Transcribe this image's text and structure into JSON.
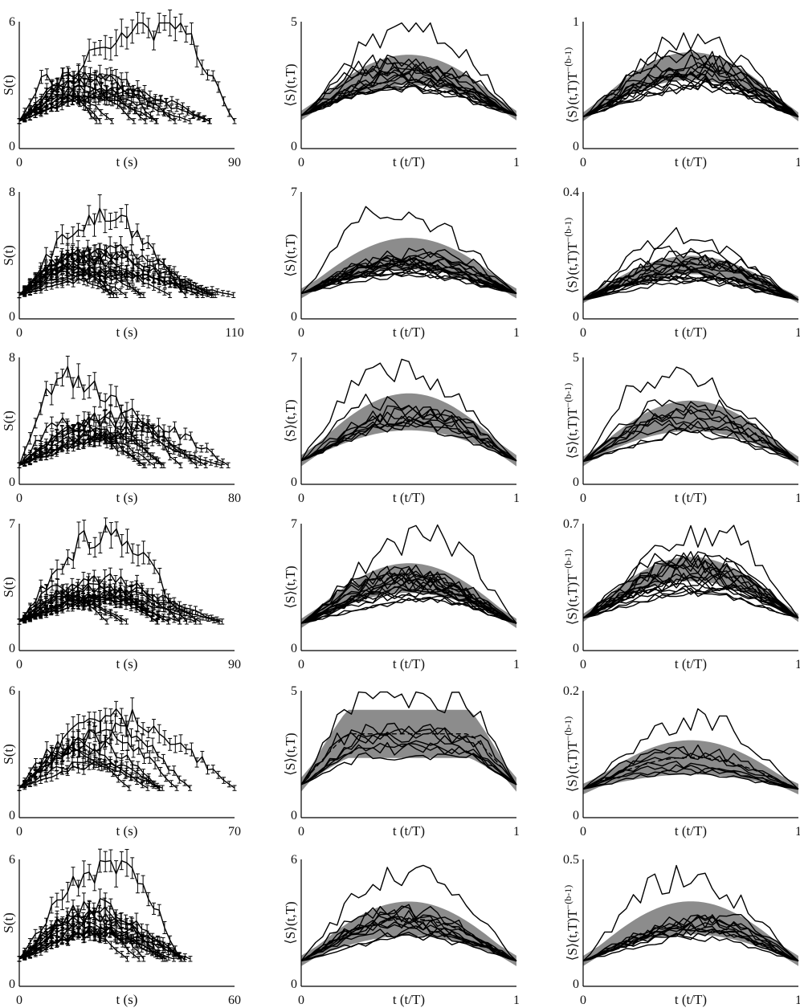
{
  "colors": {
    "line": "#000000",
    "band": "#8c8c8c",
    "axis": "#000000",
    "background": "#ffffff"
  },
  "chart_data": [
    {
      "panel": "r1c1",
      "type": "line",
      "xlabel": "t (s)",
      "ylabel": "S(t)",
      "xlim": [
        0,
        90
      ],
      "ylim": [
        0,
        6
      ],
      "x_ticks": [
        "0",
        "90"
      ],
      "y_ticks": [
        "0",
        "6"
      ],
      "error_bars": true,
      "band": false,
      "n_curves": 12,
      "seed": 11,
      "peak": 3,
      "outlier": {
        "peak": 5.8,
        "end": 90,
        "center": 0.66
      },
      "dur_range": [
        0.35,
        0.9
      ],
      "base": 1.3
    },
    {
      "panel": "r1c2",
      "type": "line",
      "xlabel": "t (t/T)",
      "ylabel": "⟨S⟩(t,T)",
      "xlim": [
        0,
        1
      ],
      "ylim": [
        0,
        5
      ],
      "x_ticks": [
        "0",
        "1"
      ],
      "y_ticks": [
        "0",
        "5"
      ],
      "error_bars": false,
      "band": true,
      "band_mid": 3.1,
      "band_half": 0.55,
      "n_curves": 16,
      "seed": 12,
      "peak": 3.0,
      "outlier": {
        "peak": 4.9
      },
      "base": 1.3
    },
    {
      "panel": "r1c3",
      "type": "line",
      "xlabel": "t (t/T)",
      "ylabel": "⟨S⟩(t,T)T",
      "ylabel_sup": "−(b-1)",
      "xlim": [
        0,
        1
      ],
      "ylim": [
        0,
        1
      ],
      "x_ticks": [
        "0",
        "1"
      ],
      "y_ticks": [
        "0",
        "1"
      ],
      "error_bars": false,
      "band": true,
      "band_mid": 0.65,
      "band_half": 0.1,
      "n_curves": 16,
      "seed": 13,
      "peak": 0.62,
      "outlier": {
        "peak": 0.86
      },
      "base": 0.25
    },
    {
      "panel": "r2c1",
      "type": "line",
      "xlabel": "t (s)",
      "ylabel": "S(t)",
      "xlim": [
        0,
        110
      ],
      "ylim": [
        0,
        8
      ],
      "x_ticks": [
        "0",
        "110"
      ],
      "y_ticks": [
        "0",
        "8"
      ],
      "error_bars": true,
      "band": false,
      "n_curves": 14,
      "seed": 21,
      "peak": 3.6,
      "outlier": {
        "peak": 6.5,
        "end": 85,
        "center": 0.5
      },
      "dur_range": [
        0.3,
        1.0
      ],
      "base": 1.5
    },
    {
      "panel": "r2c2",
      "type": "line",
      "xlabel": "t (t/T)",
      "ylabel": "⟨S⟩(t,T)",
      "xlim": [
        0,
        1
      ],
      "ylim": [
        0,
        7
      ],
      "x_ticks": [
        "0",
        "1"
      ],
      "y_ticks": [
        "0",
        "7"
      ],
      "error_bars": false,
      "band": true,
      "band_mid": 3.6,
      "band_half": 0.8,
      "n_curves": 18,
      "seed": 22,
      "peak": 3.1,
      "outlier": {
        "peak": 6.0
      },
      "base": 1.4
    },
    {
      "panel": "r2c3",
      "type": "line",
      "xlabel": "t (t/T)",
      "ylabel": "⟨S⟩(t,T)T",
      "ylabel_sup": "−(b-1)",
      "xlim": [
        0,
        1
      ],
      "ylim": [
        0,
        0.4
      ],
      "x_ticks": [
        "0",
        "1"
      ],
      "y_ticks": [
        "0",
        "0.4"
      ],
      "error_bars": false,
      "band": true,
      "band_mid": 0.17,
      "band_half": 0.025,
      "n_curves": 18,
      "seed": 23,
      "peak": 0.17,
      "outlier": {
        "peak": 0.26
      },
      "base": 0.06
    },
    {
      "panel": "r3c1",
      "type": "line",
      "xlabel": "t (s)",
      "ylabel": "S(t)",
      "xlim": [
        0,
        80
      ],
      "ylim": [
        0,
        8
      ],
      "x_ticks": [
        "0",
        "80"
      ],
      "y_ticks": [
        "0",
        "8"
      ],
      "error_bars": true,
      "band": false,
      "n_curves": 10,
      "seed": 31,
      "peak": 3.9,
      "outlier": {
        "peak": 6.8,
        "end": 60,
        "center": 0.3
      },
      "dur_range": [
        0.55,
        1.0
      ],
      "base": 1.2
    },
    {
      "panel": "r3c2",
      "type": "line",
      "xlabel": "t (t/T)",
      "ylabel": "⟨S⟩(t,T)",
      "xlim": [
        0,
        1
      ],
      "ylim": [
        0,
        7
      ],
      "x_ticks": [
        "0",
        "1"
      ],
      "y_ticks": [
        "0",
        "7"
      ],
      "error_bars": false,
      "band": true,
      "band_mid": 4.0,
      "band_half": 0.95,
      "n_curves": 10,
      "seed": 32,
      "peak": 3.9,
      "outlier": {
        "peak": 6.6
      },
      "base": 1.3
    },
    {
      "panel": "r3c3",
      "type": "line",
      "xlabel": "t (t/T)",
      "ylabel": "⟨S⟩(t,T)T",
      "ylabel_sup": "−(b-1)",
      "xlim": [
        0,
        1
      ],
      "ylim": [
        0,
        5
      ],
      "x_ticks": [
        "0",
        "1"
      ],
      "y_ticks": [
        "0",
        "5"
      ],
      "error_bars": false,
      "band": true,
      "band_mid": 2.7,
      "band_half": 0.55,
      "n_curves": 10,
      "seed": 33,
      "peak": 2.6,
      "outlier": {
        "peak": 4.4
      },
      "base": 0.9
    },
    {
      "panel": "r4c1",
      "type": "line",
      "xlabel": "t (s)",
      "ylabel": "S(t)",
      "xlim": [
        0,
        90
      ],
      "ylim": [
        0,
        7
      ],
      "x_ticks": [
        "0",
        "90"
      ],
      "y_ticks": [
        "0",
        "7"
      ],
      "error_bars": true,
      "band": false,
      "n_curves": 14,
      "seed": 41,
      "peak": 3.4,
      "outlier": {
        "peak": 6.4,
        "end": 70,
        "center": 0.5
      },
      "dur_range": [
        0.4,
        1.0
      ],
      "base": 1.6
    },
    {
      "panel": "r4c2",
      "type": "line",
      "xlabel": "t (t/T)",
      "ylabel": "⟨S⟩(t,T)",
      "xlim": [
        0,
        1
      ],
      "ylim": [
        0,
        7
      ],
      "x_ticks": [
        "0",
        "1"
      ],
      "y_ticks": [
        "0",
        "7"
      ],
      "error_bars": false,
      "band": true,
      "band_mid": 4.0,
      "band_half": 0.75,
      "n_curves": 18,
      "seed": 42,
      "peak": 3.6,
      "outlier": {
        "peak": 6.2
      },
      "base": 1.5
    },
    {
      "panel": "r4c3",
      "type": "line",
      "xlabel": "t (t/T)",
      "ylabel": "⟨S⟩(t,T)T",
      "ylabel_sup": "−(b-1)",
      "xlim": [
        0,
        1
      ],
      "ylim": [
        0,
        0.7
      ],
      "x_ticks": [
        "0",
        "1"
      ],
      "y_ticks": [
        "0",
        "0.7"
      ],
      "error_bars": false,
      "band": true,
      "band_mid": 0.45,
      "band_half": 0.06,
      "n_curves": 18,
      "seed": 43,
      "peak": 0.44,
      "outlier": {
        "peak": 0.66
      },
      "base": 0.18
    },
    {
      "panel": "r5c1",
      "type": "line",
      "xlabel": "t (s)",
      "ylabel": "S(t)",
      "xlim": [
        0,
        70
      ],
      "ylim": [
        0,
        6
      ],
      "x_ticks": [
        "0",
        "70"
      ],
      "y_ticks": [
        "0",
        "6"
      ],
      "error_bars": true,
      "band": false,
      "n_curves": 8,
      "seed": 51,
      "peak": 3.4,
      "outlier": {
        "peak": 4.7,
        "end": 70,
        "center": 0.45
      },
      "dur_range": [
        0.45,
        0.8
      ],
      "base": 1.4
    },
    {
      "panel": "r5c2",
      "type": "line",
      "xlabel": "t (t/T)",
      "ylabel": "⟨S⟩(t,T)",
      "xlim": [
        0,
        1
      ],
      "ylim": [
        0,
        5
      ],
      "x_ticks": [
        "0",
        "1"
      ],
      "y_ticks": [
        "0",
        "5"
      ],
      "error_bars": false,
      "band": true,
      "band_mid": 3.3,
      "band_half": 0.9,
      "band_flat": true,
      "dashed_mean": true,
      "n_curves": 8,
      "seed": 52,
      "peak": 3.0,
      "outlier": {
        "peak": 4.7
      },
      "base": 1.3,
      "flat": true
    },
    {
      "panel": "r5c3",
      "type": "line",
      "xlabel": "t (t/T)",
      "ylabel": "⟨S⟩(t,T)T",
      "ylabel_sup": "−(b-1)",
      "xlim": [
        0,
        1
      ],
      "ylim": [
        0,
        0.2
      ],
      "x_ticks": [
        "0",
        "1"
      ],
      "y_ticks": [
        "0",
        "0.2"
      ],
      "error_bars": false,
      "band": true,
      "band_mid": 0.095,
      "band_half": 0.025,
      "dashed_mean": true,
      "n_curves": 8,
      "seed": 53,
      "peak": 0.09,
      "outlier": {
        "peak": 0.155
      },
      "base": 0.045
    },
    {
      "panel": "r6c1",
      "type": "line",
      "xlabel": "t (s)",
      "ylabel": "S(t)",
      "xlim": [
        0,
        60
      ],
      "ylim": [
        0,
        6
      ],
      "x_ticks": [
        "0",
        "60"
      ],
      "y_ticks": [
        "0",
        "6"
      ],
      "error_bars": true,
      "band": false,
      "n_curves": 12,
      "seed": 61,
      "peak": 3.2,
      "outlier": {
        "peak": 5.9,
        "end": 45,
        "center": 0.6
      },
      "dur_range": [
        0.5,
        0.95
      ],
      "base": 1.3
    },
    {
      "panel": "r6c2",
      "type": "line",
      "xlabel": "t (t/T)",
      "ylabel": "⟨S⟩(t,T)",
      "xlim": [
        0,
        1
      ],
      "ylim": [
        0,
        6
      ],
      "x_ticks": [
        "0",
        "1"
      ],
      "y_ticks": [
        "0",
        "6"
      ],
      "error_bars": false,
      "band": true,
      "band_mid": 3.2,
      "band_half": 0.75,
      "dashed_mean": true,
      "n_curves": 12,
      "seed": 62,
      "peak": 3.1,
      "outlier": {
        "peak": 5.5
      },
      "base": 1.2
    },
    {
      "panel": "r6c3",
      "type": "line",
      "xlabel": "t (t/T)",
      "ylabel": "⟨S⟩(t,T)T",
      "ylabel_sup": "−(b-1)",
      "xlim": [
        0,
        1
      ],
      "ylim": [
        0,
        0.5
      ],
      "x_ticks": [
        "0",
        "1"
      ],
      "y_ticks": [
        "0",
        "0.5"
      ],
      "error_bars": false,
      "band": true,
      "band_mid": 0.27,
      "band_half": 0.06,
      "n_curves": 12,
      "seed": 63,
      "peak": 0.27,
      "outlier": {
        "peak": 0.43
      },
      "base": 0.1
    }
  ]
}
